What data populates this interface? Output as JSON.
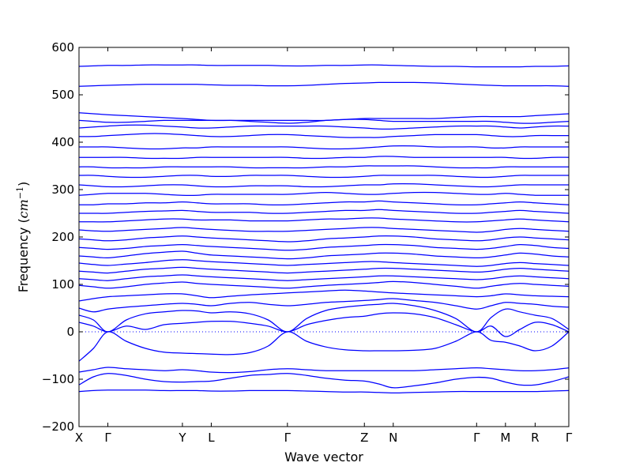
{
  "chart_data": {
    "type": "line",
    "title": "",
    "xlabel": "Wave vector",
    "ylabel": "Frequency",
    "ylabel_unit": "cm",
    "ylabel_unit_exponent": "−1",
    "ylim": [
      -200,
      600
    ],
    "yticks": [
      -200,
      -100,
      0,
      100,
      200,
      300,
      400,
      500,
      600
    ],
    "grid": false,
    "legend": "none",
    "zero_line": true,
    "line_color": "#0000ff",
    "k_path": [
      {
        "label": "X",
        "x": 0.0
      },
      {
        "label": "Γ",
        "x": 0.36
      },
      {
        "label": "Y",
        "x": 1.29
      },
      {
        "label": "L",
        "x": 1.65
      },
      {
        "label": "Γ",
        "x": 2.6
      },
      {
        "label": "Z",
        "x": 3.56
      },
      {
        "label": "N",
        "x": 3.92
      },
      {
        "label": "Γ",
        "x": 4.96
      },
      {
        "label": "M",
        "x": 5.32
      },
      {
        "label": "R",
        "x": 5.69
      },
      {
        "label": "Γ",
        "x": 6.11
      }
    ],
    "x": [
      0.0,
      0.18,
      0.36,
      0.59,
      0.83,
      1.06,
      1.29,
      1.47,
      1.65,
      1.89,
      2.13,
      2.36,
      2.6,
      2.84,
      3.08,
      3.32,
      3.56,
      3.74,
      3.92,
      4.18,
      4.44,
      4.7,
      4.96,
      5.14,
      5.32,
      5.5,
      5.69,
      5.9,
      6.11
    ],
    "series": [
      {
        "values": [
          -62,
          -35,
          0,
          -20,
          -35,
          -43,
          -45,
          -46,
          -47,
          -48,
          -44,
          -30,
          0,
          -20,
          -32,
          -38,
          -40,
          -40,
          -40,
          -39,
          -35,
          -20,
          0,
          -18,
          -22,
          -30,
          -40,
          -30,
          0
        ]
      },
      {
        "values": [
          20,
          12,
          0,
          12,
          5,
          15,
          18,
          20,
          22,
          22,
          18,
          12,
          0,
          15,
          24,
          30,
          33,
          38,
          40,
          38,
          30,
          15,
          0,
          12,
          -10,
          5,
          20,
          15,
          0
        ]
      },
      {
        "values": [
          35,
          25,
          0,
          25,
          38,
          42,
          45,
          44,
          40,
          42,
          38,
          25,
          0,
          28,
          45,
          52,
          56,
          58,
          60,
          55,
          45,
          28,
          0,
          30,
          48,
          42,
          35,
          28,
          5
        ]
      },
      {
        "values": [
          50,
          42,
          48,
          52,
          55,
          58,
          60,
          58,
          55,
          60,
          62,
          58,
          55,
          58,
          62,
          64,
          66,
          68,
          70,
          66,
          62,
          55,
          48,
          55,
          62,
          60,
          58,
          54,
          52
        ]
      },
      {
        "values": [
          65,
          70,
          74,
          76,
          78,
          80,
          80,
          76,
          72,
          75,
          78,
          80,
          82,
          84,
          86,
          88,
          86,
          84,
          82,
          80,
          78,
          76,
          74,
          76,
          80,
          78,
          76,
          75,
          74
        ]
      },
      {
        "values": [
          -85,
          -80,
          -75,
          -78,
          -80,
          -82,
          -80,
          -82,
          -85,
          -86,
          -84,
          -80,
          -78,
          -80,
          -82,
          -82,
          -82,
          -82,
          -82,
          -82,
          -80,
          -78,
          -76,
          -78,
          -80,
          -82,
          -82,
          -80,
          -76
        ]
      },
      {
        "values": [
          -112,
          -95,
          -88,
          -92,
          -100,
          -105,
          -106,
          -105,
          -104,
          -98,
          -92,
          -90,
          -88,
          -92,
          -98,
          -102,
          -104,
          -110,
          -118,
          -114,
          -108,
          -100,
          -96,
          -98,
          -106,
          -112,
          -112,
          -105,
          -95
        ]
      },
      {
        "values": [
          -126,
          -124,
          -123,
          -123,
          -123,
          -124,
          -124,
          -124,
          -125,
          -125,
          -124,
          -124,
          -124,
          -125,
          -126,
          -127,
          -127,
          -128,
          -129,
          -128,
          -127,
          -126,
          -126,
          -126,
          -126,
          -126,
          -126,
          -125,
          -124
        ]
      },
      {
        "values": [
          98,
          95,
          92,
          95,
          100,
          103,
          105,
          102,
          100,
          98,
          96,
          94,
          92,
          95,
          98,
          100,
          102,
          104,
          106,
          104,
          100,
          96,
          92,
          96,
          100,
          102,
          100,
          98,
          96
        ]
      },
      {
        "values": [
          112,
          110,
          108,
          112,
          116,
          118,
          120,
          118,
          116,
          114,
          112,
          110,
          108,
          110,
          112,
          114,
          116,
          118,
          118,
          116,
          114,
          112,
          110,
          112,
          116,
          118,
          116,
          114,
          112
        ]
      },
      {
        "values": [
          128,
          126,
          124,
          128,
          132,
          134,
          136,
          134,
          132,
          130,
          128,
          126,
          124,
          126,
          128,
          130,
          132,
          134,
          134,
          132,
          130,
          128,
          126,
          128,
          132,
          134,
          132,
          130,
          128
        ]
      },
      {
        "values": [
          145,
          142,
          140,
          143,
          146,
          150,
          152,
          150,
          148,
          146,
          144,
          142,
          140,
          142,
          144,
          146,
          148,
          148,
          146,
          144,
          142,
          140,
          138,
          140,
          144,
          146,
          144,
          142,
          140
        ]
      },
      {
        "values": [
          160,
          158,
          156,
          160,
          165,
          168,
          170,
          166,
          162,
          160,
          158,
          156,
          154,
          156,
          160,
          162,
          164,
          166,
          166,
          164,
          160,
          158,
          156,
          158,
          162,
          166,
          164,
          160,
          158
        ]
      },
      {
        "values": [
          178,
          176,
          174,
          176,
          180,
          182,
          184,
          182,
          180,
          178,
          176,
          174,
          172,
          174,
          178,
          180,
          182,
          184,
          184,
          182,
          178,
          176,
          174,
          176,
          180,
          184,
          182,
          178,
          176
        ]
      },
      {
        "values": [
          196,
          194,
          192,
          194,
          198,
          200,
          202,
          200,
          198,
          196,
          194,
          192,
          190,
          192,
          196,
          198,
          200,
          202,
          202,
          200,
          196,
          194,
          192,
          194,
          198,
          200,
          198,
          196,
          194
        ]
      },
      {
        "values": [
          215,
          213,
          212,
          214,
          216,
          218,
          220,
          218,
          216,
          214,
          212,
          212,
          212,
          214,
          216,
          218,
          220,
          220,
          218,
          216,
          214,
          212,
          210,
          212,
          216,
          218,
          216,
          214,
          212
        ]
      },
      {
        "values": [
          232,
          232,
          232,
          234,
          236,
          238,
          238,
          236,
          236,
          236,
          234,
          234,
          234,
          236,
          238,
          238,
          240,
          240,
          238,
          236,
          234,
          232,
          232,
          234,
          236,
          238,
          236,
          234,
          232
        ]
      },
      {
        "values": [
          250,
          250,
          250,
          252,
          254,
          255,
          256,
          254,
          252,
          252,
          252,
          250,
          250,
          252,
          254,
          256,
          256,
          258,
          256,
          254,
          252,
          250,
          250,
          252,
          254,
          256,
          254,
          252,
          250
        ]
      },
      {
        "values": [
          268,
          268,
          270,
          270,
          272,
          272,
          274,
          272,
          270,
          270,
          270,
          268,
          268,
          270,
          272,
          274,
          274,
          276,
          274,
          272,
          270,
          268,
          268,
          270,
          272,
          274,
          272,
          270,
          268
        ]
      },
      {
        "values": [
          288,
          290,
          292,
          292,
          292,
          290,
          288,
          288,
          290,
          290,
          290,
          290,
          290,
          292,
          294,
          292,
          290,
          290,
          292,
          294,
          294,
          292,
          290,
          290,
          292,
          290,
          288,
          288,
          288
        ]
      },
      {
        "values": [
          310,
          308,
          306,
          306,
          308,
          310,
          310,
          308,
          306,
          306,
          308,
          308,
          308,
          306,
          306,
          308,
          310,
          310,
          312,
          312,
          310,
          308,
          306,
          306,
          308,
          310,
          310,
          310,
          310
        ]
      },
      {
        "values": [
          330,
          330,
          328,
          326,
          326,
          328,
          330,
          330,
          328,
          328,
          330,
          330,
          330,
          328,
          326,
          326,
          328,
          330,
          330,
          330,
          330,
          328,
          326,
          326,
          328,
          330,
          330,
          330,
          330
        ]
      },
      {
        "values": [
          348,
          348,
          346,
          346,
          346,
          348,
          348,
          348,
          348,
          348,
          346,
          346,
          346,
          346,
          348,
          348,
          350,
          350,
          350,
          350,
          348,
          346,
          346,
          346,
          348,
          348,
          348,
          348,
          348
        ]
      },
      {
        "values": [
          368,
          368,
          368,
          368,
          366,
          366,
          366,
          368,
          368,
          368,
          368,
          368,
          368,
          366,
          366,
          368,
          368,
          370,
          370,
          368,
          368,
          368,
          368,
          368,
          368,
          366,
          366,
          368,
          368
        ]
      },
      {
        "values": [
          390,
          390,
          390,
          388,
          386,
          386,
          388,
          388,
          390,
          390,
          390,
          390,
          390,
          388,
          386,
          386,
          388,
          390,
          392,
          392,
          390,
          390,
          390,
          388,
          388,
          390,
          390,
          390,
          390
        ]
      },
      {
        "values": [
          412,
          412,
          414,
          416,
          418,
          418,
          416,
          414,
          412,
          412,
          414,
          416,
          416,
          414,
          412,
          410,
          410,
          410,
          412,
          414,
          416,
          416,
          416,
          414,
          412,
          412,
          414,
          414,
          414
        ]
      },
      {
        "values": [
          430,
          432,
          434,
          436,
          436,
          434,
          432,
          430,
          430,
          432,
          434,
          434,
          434,
          434,
          434,
          432,
          430,
          428,
          428,
          430,
          432,
          434,
          434,
          434,
          432,
          430,
          432,
          434,
          434
        ]
      },
      {
        "values": [
          446,
          444,
          442,
          442,
          444,
          446,
          446,
          446,
          446,
          446,
          444,
          442,
          440,
          442,
          446,
          448,
          448,
          446,
          444,
          444,
          444,
          444,
          444,
          444,
          442,
          440,
          440,
          442,
          444
        ]
      },
      {
        "values": [
          462,
          460,
          458,
          456,
          454,
          452,
          450,
          448,
          446,
          446,
          446,
          446,
          446,
          446,
          446,
          448,
          450,
          450,
          450,
          450,
          450,
          452,
          454,
          454,
          454,
          454,
          456,
          458,
          460
        ]
      },
      {
        "values": [
          518,
          519,
          520,
          521,
          522,
          522,
          522,
          522,
          521,
          520,
          520,
          519,
          519,
          520,
          522,
          524,
          525,
          526,
          526,
          526,
          525,
          523,
          521,
          520,
          519,
          519,
          519,
          519,
          518
        ]
      },
      {
        "values": [
          560,
          561,
          562,
          562,
          563,
          563,
          563,
          563,
          562,
          562,
          562,
          562,
          561,
          561,
          562,
          562,
          563,
          563,
          562,
          561,
          560,
          560,
          559,
          559,
          559,
          559,
          560,
          560,
          561
        ]
      }
    ]
  }
}
